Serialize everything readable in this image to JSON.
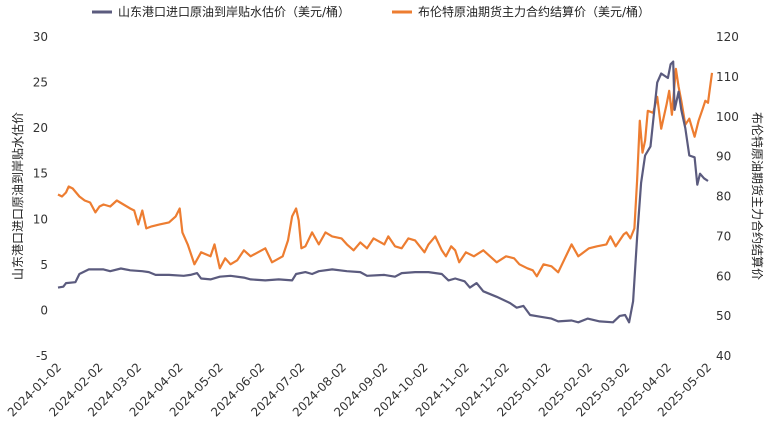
{
  "chart_data": {
    "type": "line",
    "title": "",
    "xlabel": "",
    "x_ticks": [
      "2024-01-02",
      "2024-02-02",
      "2024-03-02",
      "2024-04-02",
      "2024-05-02",
      "2024-06-02",
      "2024-07-02",
      "2024-08-02",
      "2024-09-02",
      "2024-10-02",
      "2024-11-02",
      "2024-12-02",
      "2025-01-02",
      "2025-02-02",
      "2025-03-02",
      "2025-04-02",
      "2025-05-02"
    ],
    "y_left": {
      "label": "山东港口进口原油到岸贴水估价",
      "min": -5,
      "max": 30,
      "ticks": [
        -5,
        0,
        5,
        10,
        15,
        20,
        25,
        30
      ]
    },
    "y_right": {
      "label": "布伦特原油期货主力合约结算价",
      "min": 40,
      "max": 120,
      "ticks": [
        40,
        50,
        60,
        70,
        80,
        90,
        100,
        110,
        120
      ]
    },
    "legend_position": "top",
    "grid": false,
    "series": [
      {
        "name": "山东港口进口原油到岸贴水估价（美元/桶）",
        "axis": "left",
        "color": "#5b5b7e",
        "points": [
          [
            "2024-01-02",
            2.5
          ],
          [
            "2024-01-06",
            2.6
          ],
          [
            "2024-01-08",
            3.0
          ],
          [
            "2024-01-15",
            3.1
          ],
          [
            "2024-01-18",
            4.0
          ],
          [
            "2024-01-25",
            4.5
          ],
          [
            "2024-02-05",
            4.5
          ],
          [
            "2024-02-10",
            4.3
          ],
          [
            "2024-02-18",
            4.6
          ],
          [
            "2024-02-25",
            4.4
          ],
          [
            "2024-03-05",
            4.3
          ],
          [
            "2024-03-10",
            4.2
          ],
          [
            "2024-03-15",
            3.9
          ],
          [
            "2024-03-25",
            3.9
          ],
          [
            "2024-04-05",
            3.8
          ],
          [
            "2024-04-10",
            3.9
          ],
          [
            "2024-04-15",
            4.1
          ],
          [
            "2024-04-18",
            3.5
          ],
          [
            "2024-04-25",
            3.4
          ],
          [
            "2024-05-02",
            3.7
          ],
          [
            "2024-05-10",
            3.8
          ],
          [
            "2024-05-20",
            3.6
          ],
          [
            "2024-05-25",
            3.4
          ],
          [
            "2024-06-05",
            3.3
          ],
          [
            "2024-06-15",
            3.4
          ],
          [
            "2024-06-25",
            3.3
          ],
          [
            "2024-06-28",
            4.0
          ],
          [
            "2024-07-05",
            4.2
          ],
          [
            "2024-07-10",
            4.0
          ],
          [
            "2024-07-15",
            4.3
          ],
          [
            "2024-07-25",
            4.5
          ],
          [
            "2024-08-05",
            4.3
          ],
          [
            "2024-08-15",
            4.2
          ],
          [
            "2024-08-20",
            3.8
          ],
          [
            "2024-09-02",
            3.9
          ],
          [
            "2024-09-10",
            3.7
          ],
          [
            "2024-09-15",
            4.1
          ],
          [
            "2024-09-25",
            4.2
          ],
          [
            "2024-10-05",
            4.2
          ],
          [
            "2024-10-15",
            4.0
          ],
          [
            "2024-10-20",
            3.3
          ],
          [
            "2024-10-25",
            3.5
          ],
          [
            "2024-11-01",
            3.2
          ],
          [
            "2024-11-05",
            2.5
          ],
          [
            "2024-11-10",
            3.0
          ],
          [
            "2024-11-15",
            2.1
          ],
          [
            "2024-11-25",
            1.5
          ],
          [
            "2024-12-05",
            0.8
          ],
          [
            "2024-12-10",
            0.3
          ],
          [
            "2024-12-15",
            0.5
          ],
          [
            "2024-12-20",
            -0.5
          ],
          [
            "2024-12-28",
            -0.7
          ],
          [
            "2025-01-05",
            -0.9
          ],
          [
            "2025-01-10",
            -1.2
          ],
          [
            "2025-01-20",
            -1.1
          ],
          [
            "2025-01-25",
            -1.3
          ],
          [
            "2025-02-01",
            -0.9
          ],
          [
            "2025-02-10",
            -1.2
          ],
          [
            "2025-02-20",
            -1.3
          ],
          [
            "2025-02-25",
            -0.6
          ],
          [
            "2025-03-01",
            -0.5
          ],
          [
            "2025-03-04",
            -1.3
          ],
          [
            "2025-03-07",
            1.0
          ],
          [
            "2025-03-10",
            8.0
          ],
          [
            "2025-03-13",
            14.0
          ],
          [
            "2025-03-16",
            17.0
          ],
          [
            "2025-03-20",
            18.0
          ],
          [
            "2025-03-25",
            25.0
          ],
          [
            "2025-03-28",
            26.0
          ],
          [
            "2025-04-02",
            25.5
          ],
          [
            "2025-04-04",
            27.0
          ],
          [
            "2025-04-06",
            27.3
          ],
          [
            "2025-04-07",
            22.0
          ],
          [
            "2025-04-10",
            24.0
          ],
          [
            "2025-04-12",
            22.0
          ],
          [
            "2025-04-15",
            20.0
          ],
          [
            "2025-04-18",
            17.0
          ],
          [
            "2025-04-22",
            16.8
          ],
          [
            "2025-04-24",
            13.8
          ],
          [
            "2025-04-26",
            15.0
          ],
          [
            "2025-04-29",
            14.5
          ],
          [
            "2025-05-02",
            14.2
          ]
        ]
      },
      {
        "name": "布伦特原油期货主力合约结算价（美元/桶）",
        "axis": "right",
        "color": "#ed7d31",
        "points": [
          [
            "2024-01-02",
            80.5
          ],
          [
            "2024-01-05",
            80.0
          ],
          [
            "2024-01-08",
            81.0
          ],
          [
            "2024-01-10",
            82.5
          ],
          [
            "2024-01-13",
            82.0
          ],
          [
            "2024-01-18",
            80.0
          ],
          [
            "2024-01-22",
            79.0
          ],
          [
            "2024-01-26",
            78.5
          ],
          [
            "2024-01-30",
            76.0
          ],
          [
            "2024-02-02",
            77.5
          ],
          [
            "2024-02-05",
            78.0
          ],
          [
            "2024-02-10",
            77.5
          ],
          [
            "2024-02-15",
            79.0
          ],
          [
            "2024-02-20",
            78.0
          ],
          [
            "2024-02-25",
            77.0
          ],
          [
            "2024-02-28",
            76.5
          ],
          [
            "2024-03-02",
            73.0
          ],
          [
            "2024-03-05",
            76.5
          ],
          [
            "2024-03-08",
            72.0
          ],
          [
            "2024-03-12",
            72.5
          ],
          [
            "2024-03-18",
            73.0
          ],
          [
            "2024-03-25",
            73.5
          ],
          [
            "2024-03-30",
            75.0
          ],
          [
            "2024-04-02",
            77.0
          ],
          [
            "2024-04-04",
            71.0
          ],
          [
            "2024-04-08",
            68.0
          ],
          [
            "2024-04-10",
            66.0
          ],
          [
            "2024-04-13",
            63.0
          ],
          [
            "2024-04-18",
            66.0
          ],
          [
            "2024-04-25",
            65.0
          ],
          [
            "2024-04-28",
            68.0
          ],
          [
            "2024-05-02",
            62.0
          ],
          [
            "2024-05-06",
            64.5
          ],
          [
            "2024-05-10",
            63.0
          ],
          [
            "2024-05-15",
            64.0
          ],
          [
            "2024-05-20",
            66.5
          ],
          [
            "2024-05-25",
            65.0
          ],
          [
            "2024-06-05",
            67.0
          ],
          [
            "2024-06-10",
            63.5
          ],
          [
            "2024-06-18",
            65.0
          ],
          [
            "2024-06-22",
            69.0
          ],
          [
            "2024-06-25",
            75.0
          ],
          [
            "2024-06-28",
            77.0
          ],
          [
            "2024-06-30",
            74.0
          ],
          [
            "2024-07-02",
            67.0
          ],
          [
            "2024-07-05",
            67.5
          ],
          [
            "2024-07-10",
            71.0
          ],
          [
            "2024-07-15",
            68.0
          ],
          [
            "2024-07-20",
            71.0
          ],
          [
            "2024-07-25",
            70.0
          ],
          [
            "2024-08-01",
            69.5
          ],
          [
            "2024-08-05",
            68.0
          ],
          [
            "2024-08-10",
            66.5
          ],
          [
            "2024-08-15",
            68.5
          ],
          [
            "2024-08-20",
            67.0
          ],
          [
            "2024-08-25",
            69.5
          ],
          [
            "2024-09-02",
            68.0
          ],
          [
            "2024-09-05",
            70.0
          ],
          [
            "2024-09-10",
            67.5
          ],
          [
            "2024-09-15",
            67.0
          ],
          [
            "2024-09-20",
            69.5
          ],
          [
            "2024-09-25",
            69.0
          ],
          [
            "2024-10-02",
            66.0
          ],
          [
            "2024-10-05",
            68.0
          ],
          [
            "2024-10-10",
            70.0
          ],
          [
            "2024-10-15",
            66.5
          ],
          [
            "2024-10-18",
            65.0
          ],
          [
            "2024-10-22",
            67.5
          ],
          [
            "2024-10-25",
            66.5
          ],
          [
            "2024-10-28",
            63.5
          ],
          [
            "2024-11-02",
            66.0
          ],
          [
            "2024-11-08",
            65.0
          ],
          [
            "2024-11-15",
            66.5
          ],
          [
            "2024-11-20",
            65.0
          ],
          [
            "2024-11-25",
            63.5
          ],
          [
            "2024-12-02",
            65.0
          ],
          [
            "2024-12-08",
            64.5
          ],
          [
            "2024-12-12",
            63.0
          ],
          [
            "2024-12-18",
            62.0
          ],
          [
            "2024-12-22",
            61.5
          ],
          [
            "2024-12-25",
            60.0
          ],
          [
            "2024-12-30",
            63.0
          ],
          [
            "2025-01-05",
            62.5
          ],
          [
            "2025-01-10",
            61.0
          ],
          [
            "2025-01-15",
            64.5
          ],
          [
            "2025-01-20",
            68.0
          ],
          [
            "2025-01-25",
            65.0
          ],
          [
            "2025-02-02",
            67.0
          ],
          [
            "2025-02-08",
            67.5
          ],
          [
            "2025-02-15",
            68.0
          ],
          [
            "2025-02-18",
            70.0
          ],
          [
            "2025-02-22",
            67.5
          ],
          [
            "2025-02-28",
            70.5
          ],
          [
            "2025-03-02",
            71.0
          ],
          [
            "2025-03-05",
            69.5
          ],
          [
            "2025-03-08",
            72.0
          ],
          [
            "2025-03-10",
            84.0
          ],
          [
            "2025-03-12",
            99.0
          ],
          [
            "2025-03-14",
            91.0
          ],
          [
            "2025-03-16",
            94.0
          ],
          [
            "2025-03-18",
            101.5
          ],
          [
            "2025-03-22",
            101.0
          ],
          [
            "2025-03-25",
            105.0
          ],
          [
            "2025-03-28",
            97.0
          ],
          [
            "2025-04-01",
            103.0
          ],
          [
            "2025-04-03",
            106.5
          ],
          [
            "2025-04-05",
            100.5
          ],
          [
            "2025-04-08",
            112.0
          ],
          [
            "2025-04-10",
            107.5
          ],
          [
            "2025-04-12",
            104.0
          ],
          [
            "2025-04-15",
            98.0
          ],
          [
            "2025-04-18",
            99.5
          ],
          [
            "2025-04-22",
            95.0
          ],
          [
            "2025-04-25",
            99.0
          ],
          [
            "2025-04-28",
            102.0
          ],
          [
            "2025-04-30",
            104.0
          ],
          [
            "2025-05-02",
            103.5
          ],
          [
            "2025-05-03",
            106.0
          ],
          [
            "2025-05-05",
            111.0
          ]
        ]
      }
    ]
  }
}
